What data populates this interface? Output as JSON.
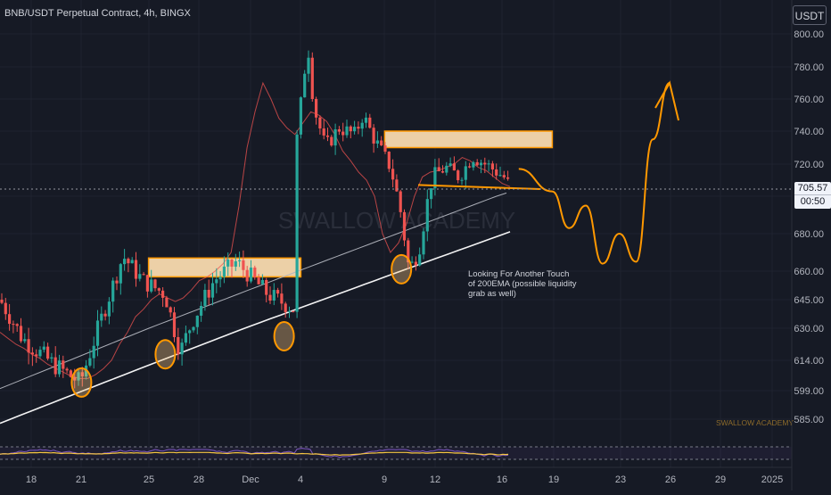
{
  "header": {
    "symbol_title": "BNB/USDT Perpetual Contract, 4h, BINGX",
    "currency": "USDT"
  },
  "last_price": {
    "value": "705.57",
    "countdown": "00:50"
  },
  "watermark": "SWALLOW ACADEMY",
  "footer_watermark": "SWALLOW ACADEMY",
  "annotation": "Looking For Another Touch\nof 200EMA (possible liquidity\ngrab as well)",
  "colors": {
    "background": "#161a25",
    "bull_candle": "#26a69a",
    "bear_candle": "#ef5350",
    "zone_fill": "#ffe0b2",
    "zone_border": "#ff9800",
    "forecast": "#ff9800",
    "ema200": "#ffffff",
    "ema100": "#b2b5be",
    "rsi_line": "#f5c542"
  },
  "chart_data": {
    "type": "candlestick",
    "title": "BNB/USDT Perpetual Contract, 4h, BINGX",
    "ylim": [
      578,
      808
    ],
    "y_ticks": [
      "800.00",
      "780.00",
      "760.00",
      "740.00",
      "720.00",
      "700.00",
      "680.00",
      "660.00",
      "645.00",
      "630.00",
      "614.00",
      "599.00",
      "585.00"
    ],
    "x_ticks": [
      "18",
      "21",
      "25",
      "28",
      "Dec",
      "4",
      "9",
      "12",
      "16",
      "19",
      "23",
      "26",
      "29",
      "2025"
    ],
    "zones": [
      {
        "from": "Nov 25",
        "to": "Dec 4",
        "y_low": 657,
        "y_high": 667
      },
      {
        "from": "Dec 9",
        "to": "Dec 19",
        "y_low": 730,
        "y_high": 740
      }
    ],
    "touch_points": [
      {
        "date": "Nov 21",
        "price": 603
      },
      {
        "date": "Nov 26",
        "price": 617
      },
      {
        "date": "Dec 3",
        "price": 626
      },
      {
        "date": "Dec 10",
        "price": 661
      }
    ],
    "forecast_path": [
      {
        "date": "Dec 17",
        "price": 717
      },
      {
        "date": "Dec 19",
        "price": 703
      },
      {
        "date": "Dec 20",
        "price": 683
      },
      {
        "date": "Dec 21",
        "price": 695
      },
      {
        "date": "Dec 22",
        "price": 664
      },
      {
        "date": "Dec 23",
        "price": 680
      },
      {
        "date": "Dec 24",
        "price": 665
      },
      {
        "date": "Dec 25",
        "price": 735
      },
      {
        "date": "Dec 26",
        "price": 770
      }
    ],
    "trendline": {
      "from": {
        "date": "Dec 11",
        "price": 707
      },
      "to": {
        "date": "Dec 17",
        "price": 710
      }
    },
    "series": [
      {
        "values": [
          628,
          625,
          622,
          620,
          617,
          615,
          612,
          610,
          608,
          606,
          605,
          605,
          607,
          610,
          614,
          622,
          628,
          636,
          640,
          645,
          648,
          646,
          644,
          646,
          650,
          655,
          657,
          660,
          664,
          670,
          695,
          730,
          752,
          770,
          760,
          748,
          742,
          738,
          745,
          752,
          750,
          746,
          738,
          728,
          722,
          715,
          710,
          700,
          680,
          670,
          675,
          685,
          700,
          712,
          715,
          716,
          718,
          720,
          724,
          722,
          718,
          716,
          712,
          708,
          706
        ]
      },
      {
        "values": [
          600,
          602,
          604,
          606,
          608,
          610,
          612,
          614,
          616,
          618,
          620,
          622,
          624,
          626,
          628,
          630,
          632,
          634,
          636,
          638,
          640,
          642,
          644,
          646,
          648,
          650,
          652,
          654,
          656,
          658,
          660,
          662,
          664,
          666,
          668,
          670,
          672,
          674,
          676,
          678,
          680,
          682,
          684,
          686,
          688,
          690,
          692,
          694,
          696,
          698,
          700,
          702
        ]
      },
      {
        "values": [
          583,
          585,
          587,
          589,
          591,
          593,
          595,
          597,
          599,
          601,
          603,
          605,
          607,
          609,
          611,
          613,
          615,
          617,
          619,
          621,
          623,
          625,
          627,
          629,
          631,
          633,
          635,
          637,
          639,
          641,
          643,
          645,
          647,
          649,
          651,
          653,
          655,
          657,
          659,
          661,
          663,
          665,
          667,
          669,
          671,
          673,
          675,
          677,
          679,
          681
        ]
      }
    ]
  }
}
